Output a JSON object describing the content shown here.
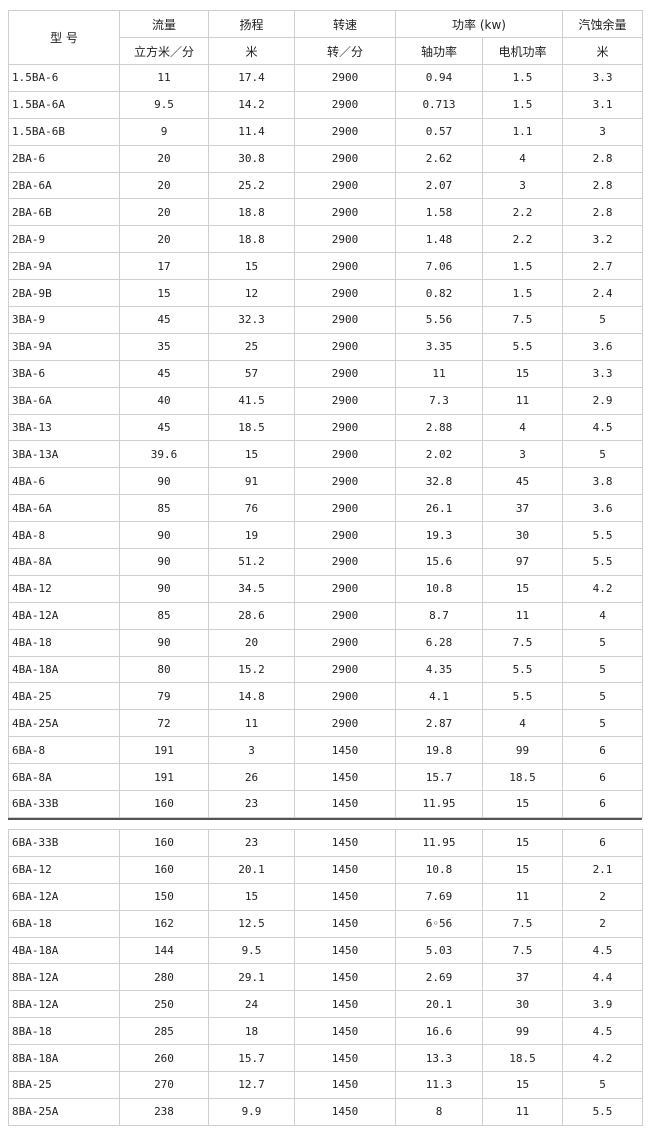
{
  "header": {
    "model": "型 号",
    "flow": "流量",
    "flow_unit": "立方米／分",
    "head": "扬程",
    "head_unit": "米",
    "speed": "转速",
    "speed_unit": "转／分",
    "power": "功率 (kw)",
    "shaft_power": "轴功率",
    "motor_power": "电机功率",
    "npsh": "汽蚀余量",
    "npsh_unit": "米"
  },
  "table1": [
    [
      "1.5BA-6",
      "11",
      "17.4",
      "2900",
      "0.94",
      "1.5",
      "3.3"
    ],
    [
      "1.5BA-6A",
      "9.5",
      "14.2",
      "2900",
      "0.713",
      "1.5",
      "3.1"
    ],
    [
      "1.5BA-6B",
      "9",
      "11.4",
      "2900",
      "0.57",
      "1.1",
      "3"
    ],
    [
      "2BA-6",
      "20",
      "30.8",
      "2900",
      "2.62",
      "4",
      "2.8"
    ],
    [
      "2BA-6A",
      "20",
      "25.2",
      "2900",
      "2.07",
      "3",
      "2.8"
    ],
    [
      "2BA-6B",
      "20",
      "18.8",
      "2900",
      "1.58",
      "2.2",
      "2.8"
    ],
    [
      "2BA-9",
      "20",
      "18.8",
      "2900",
      "1.48",
      "2.2",
      "3.2"
    ],
    [
      "2BA-9A",
      "17",
      "15",
      "2900",
      "7.06",
      "1.5",
      "2.7"
    ],
    [
      "2BA-9B",
      "15",
      "12",
      "2900",
      "0.82",
      "1.5",
      "2.4"
    ],
    [
      "3BA-9",
      "45",
      "32.3",
      "2900",
      "5.56",
      "7.5",
      "5"
    ],
    [
      "3BA-9A",
      "35",
      "25",
      "2900",
      "3.35",
      "5.5",
      "3.6"
    ],
    [
      "3BA-6",
      "45",
      "57",
      "2900",
      "11",
      "15",
      "3.3"
    ],
    [
      "3BA-6A",
      "40",
      "41.5",
      "2900",
      "7.3",
      "11",
      "2.9"
    ],
    [
      "3BA-13",
      "45",
      "18.5",
      "2900",
      "2.88",
      "4",
      "4.5"
    ],
    [
      "3BA-13A",
      "39.6",
      "15",
      "2900",
      "2.02",
      "3",
      "5"
    ],
    [
      "4BA-6",
      "90",
      "91",
      "2900",
      "32.8",
      "45",
      "3.8"
    ],
    [
      "4BA-6A",
      "85",
      "76",
      "2900",
      "26.1",
      "37",
      "3.6"
    ],
    [
      "4BA-8",
      "90",
      "19",
      "2900",
      "19.3",
      "30",
      "5.5"
    ],
    [
      "4BA-8A",
      "90",
      "51.2",
      "2900",
      "15.6",
      "97",
      "5.5"
    ],
    [
      "4BA-12",
      "90",
      "34.5",
      "2900",
      "10.8",
      "15",
      "4.2"
    ],
    [
      "4BA-12A",
      "85",
      "28.6",
      "2900",
      "8.7",
      "11",
      "4"
    ],
    [
      "4BA-18",
      "90",
      "20",
      "2900",
      "6.28",
      "7.5",
      "5"
    ],
    [
      "4BA-18A",
      "80",
      "15.2",
      "2900",
      "4.35",
      "5.5",
      "5"
    ],
    [
      "4BA-25",
      "79",
      "14.8",
      "2900",
      "4.1",
      "5.5",
      "5"
    ],
    [
      "4BA-25A",
      "72",
      "11",
      "2900",
      "2.87",
      "4",
      "5"
    ],
    [
      "6BA-8",
      "191",
      "3",
      "1450",
      "19.8",
      "99",
      "6"
    ],
    [
      "6BA-8A",
      "191",
      "26",
      "1450",
      "15.7",
      "18.5",
      "6"
    ],
    [
      "6BA-33B",
      "160",
      "23",
      "1450",
      "11.95",
      "15",
      "6"
    ]
  ],
  "table2": [
    [
      "6BA-33B",
      "160",
      "23",
      "1450",
      "11.95",
      "15",
      "6"
    ],
    [
      "6BA-12",
      "160",
      "20.1",
      "1450",
      "10.8",
      "15",
      "2.1"
    ],
    [
      "6BA-12A",
      "150",
      "15",
      "1450",
      "7.69",
      "11",
      "2"
    ],
    [
      "6BA-18",
      "162",
      "12.5",
      "1450",
      "6◦56",
      "7.5",
      "2"
    ],
    [
      "4BA-18A",
      "144",
      "9.5",
      "1450",
      "5.03",
      "7.5",
      "4.5"
    ],
    [
      "8BA-12A",
      "280",
      "29.1",
      "1450",
      "2.69",
      "37",
      "4.4"
    ],
    [
      "8BA-12A",
      "250",
      "24",
      "1450",
      "20.1",
      "30",
      "3.9"
    ],
    [
      "8BA-18",
      "285",
      "18",
      "1450",
      "16.6",
      "99",
      "4.5"
    ],
    [
      "8BA-18A",
      "260",
      "15.7",
      "1450",
      "13.3",
      "18.5",
      "4.2"
    ],
    [
      "8BA-25",
      "270",
      "12.7",
      "1450",
      "11.3",
      "15",
      "5"
    ],
    [
      "8BA-25A",
      "238",
      "9.9",
      "1450",
      "8",
      "11",
      "5.5"
    ]
  ]
}
